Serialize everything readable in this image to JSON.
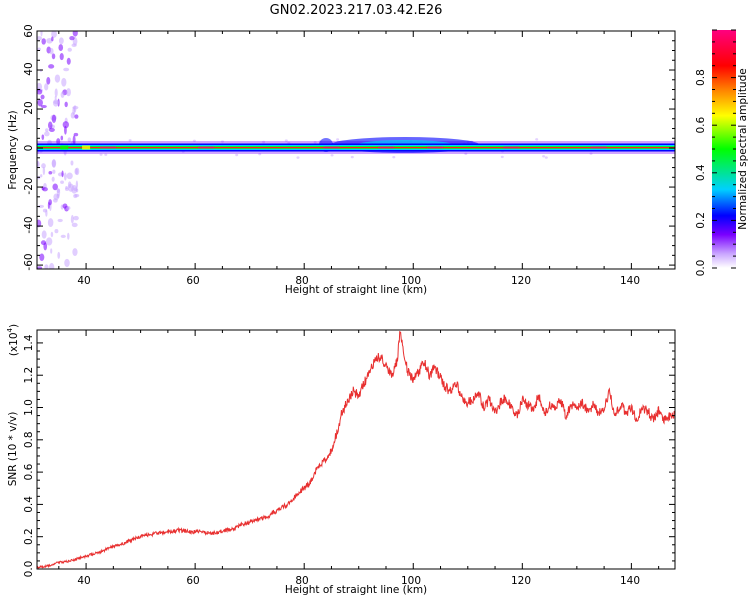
{
  "title": "GN02.2023.217.03.42.E26",
  "chart_data": [
    {
      "type": "heatmap",
      "xlabel": "Height of straight line (km)",
      "ylabel": "Frequency (Hz)",
      "xlim": [
        31,
        148
      ],
      "ylim": [
        -62,
        60
      ],
      "xticks": [
        "40",
        "60",
        "80",
        "100",
        "120",
        "140"
      ],
      "yticks": [
        "60",
        "40",
        "20",
        "0",
        "-20",
        "-40",
        "-60"
      ],
      "colorbar": {
        "label": "Normalized spectral amplitude",
        "range": [
          0,
          1
        ],
        "ticks": [
          "0.0",
          "0.2",
          "0.4",
          "0.6",
          "0.8"
        ],
        "colors": [
          "#ffffff",
          "#c9a5ff",
          "#7a00ff",
          "#0000ff",
          "#00d0ff",
          "#00ff00",
          "#ffff00",
          "#ff8000",
          "#ff0000",
          "#ff007f"
        ]
      },
      "features": [
        {
          "description": "",
          "frequency_hz": 0,
          "x_range": [
            31,
            148
          ],
          "peak_amplitude": 0.85,
          "bandwidth_hz": 4
        },
        {
          "description": "",
          "x_range": [
            88,
            106
          ],
          "frequency_range": [
            -4,
            5
          ],
          "peak_amplitude": 0.45
        },
        {
          "description": "",
          "x_range": [
            31,
            38
          ],
          "frequency_range": [
            -62,
            60
          ],
          "peak_amplitude": 0.15
        }
      ]
    },
    {
      "type": "line",
      "xlabel": "Height of straight line (km)",
      "ylabel": "SNR (10 * v/v)",
      "yscale_label": "(x10",
      "yscale_exp": "4",
      "xlim": [
        31,
        148
      ],
      "ylim": [
        0,
        1.48
      ],
      "xticks": [
        "40",
        "60",
        "80",
        "100",
        "120",
        "140"
      ],
      "yticks": [
        "0.0",
        "0.2",
        "0.4",
        "0.6",
        "0.8",
        "1.0",
        "1.2",
        "1.4"
      ],
      "series": [
        {
          "color": "#e83030",
          "x": [
            31,
            33,
            35,
            37,
            39,
            41,
            43,
            45,
            47,
            49,
            51,
            53,
            55,
            57,
            59,
            61,
            63,
            65,
            67,
            69,
            71,
            73,
            75,
            77,
            79,
            80,
            81,
            82,
            83,
            84,
            85,
            86,
            87,
            88,
            89,
            90,
            91,
            92,
            93,
            94,
            95,
            96,
            97,
            97.6,
            98,
            99,
            100,
            101,
            102,
            103,
            104,
            105,
            106,
            107,
            108,
            109,
            110,
            111,
            112,
            113,
            114,
            115,
            116,
            117,
            118,
            119,
            120,
            121,
            122,
            123,
            124,
            125,
            126,
            127,
            128,
            129,
            130,
            131,
            132,
            133,
            134,
            135,
            136,
            137,
            138,
            139,
            140,
            141,
            142,
            143,
            144,
            145,
            146,
            147,
            148
          ],
          "values": [
            0.01,
            0.02,
            0.04,
            0.05,
            0.07,
            0.09,
            0.11,
            0.14,
            0.16,
            0.19,
            0.21,
            0.22,
            0.23,
            0.24,
            0.23,
            0.23,
            0.22,
            0.23,
            0.25,
            0.28,
            0.3,
            0.32,
            0.36,
            0.4,
            0.47,
            0.5,
            0.53,
            0.6,
            0.64,
            0.68,
            0.73,
            0.85,
            0.98,
            1.03,
            1.1,
            1.08,
            1.15,
            1.22,
            1.3,
            1.32,
            1.25,
            1.2,
            1.28,
            1.47,
            1.38,
            1.22,
            1.18,
            1.22,
            1.28,
            1.2,
            1.25,
            1.18,
            1.12,
            1.1,
            1.15,
            1.05,
            1.03,
            1.05,
            1.08,
            1.0,
            1.05,
            0.97,
            1.03,
            1.06,
            1.0,
            0.95,
            1.05,
            1.02,
            0.98,
            1.08,
            0.96,
            1.02,
            0.98,
            1.05,
            0.95,
            1.02,
            0.98,
            1.03,
            0.97,
            1.02,
            0.96,
            1.0,
            1.1,
            0.95,
            1.02,
            0.97,
            0.99,
            0.93,
            1.0,
            0.98,
            0.92,
            0.98,
            0.92,
            0.95,
            0.96
          ]
        }
      ]
    }
  ]
}
